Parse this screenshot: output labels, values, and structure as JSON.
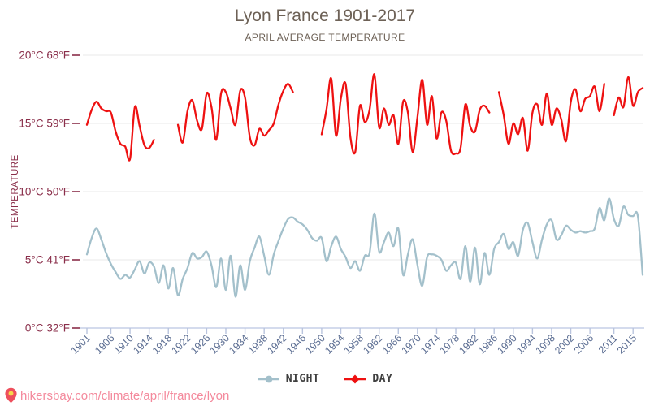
{
  "title": "Lyon France 1901-2017",
  "subtitle": "APRIL AVERAGE TEMPERATURE",
  "footer": {
    "url": "hikersbay.com/climate/april/france/lyon"
  },
  "legend": {
    "night_label": "NIGHT",
    "day_label": "DAY"
  },
  "axis": {
    "y_label": "TEMPERATURE",
    "y_ticks": [
      {
        "value": 20,
        "label": "20°C 68°F"
      },
      {
        "value": 15,
        "label": "15°C 59°F"
      },
      {
        "value": 10,
        "label": "10°C 50°F"
      },
      {
        "value": 5,
        "label": "5°C 41°F"
      },
      {
        "value": 0,
        "label": "0°C 32°F"
      }
    ],
    "x_tick_years": [
      1901,
      1906,
      1910,
      1914,
      1918,
      1922,
      1926,
      1930,
      1934,
      1938,
      1942,
      1946,
      1950,
      1954,
      1958,
      1962,
      1966,
      1970,
      1974,
      1978,
      1982,
      1986,
      1990,
      1994,
      1998,
      2002,
      2006,
      2011,
      2015
    ]
  },
  "colors": {
    "day": "#ee1111",
    "night": "#a3c0cb",
    "grid": "#e8e8e8",
    "axis_line": "#c6cfe7",
    "axis_tick": "#b9c4de",
    "y_label_text": "#8a2e4a",
    "x_label_text": "#5b6d92",
    "title_text": "#6d6156",
    "legend_text": "#3f3f3f",
    "footer_text": "#f4899c",
    "pin_outer": "#ee4f5c",
    "pin_inner": "#f7d74c"
  },
  "chart_data": {
    "type": "line",
    "title": "Lyon France 1901-2017",
    "subtitle": "APRIL AVERAGE TEMPERATURE",
    "ylabel": "TEMPERATURE",
    "ylim_c": [
      0,
      20
    ],
    "grid": "horizontal",
    "legend_position": "bottom",
    "x": [
      1901,
      1902,
      1903,
      1904,
      1905,
      1906,
      1907,
      1908,
      1909,
      1910,
      1911,
      1912,
      1913,
      1914,
      1915,
      1916,
      1917,
      1918,
      1919,
      1920,
      1921,
      1922,
      1923,
      1924,
      1925,
      1926,
      1927,
      1928,
      1929,
      1930,
      1931,
      1932,
      1933,
      1934,
      1935,
      1936,
      1937,
      1938,
      1939,
      1940,
      1941,
      1942,
      1943,
      1944,
      1945,
      1946,
      1947,
      1948,
      1949,
      1950,
      1951,
      1952,
      1953,
      1954,
      1955,
      1956,
      1957,
      1958,
      1959,
      1960,
      1961,
      1962,
      1963,
      1964,
      1965,
      1966,
      1967,
      1968,
      1969,
      1970,
      1971,
      1972,
      1973,
      1974,
      1975,
      1976,
      1977,
      1978,
      1979,
      1980,
      1981,
      1982,
      1983,
      1984,
      1985,
      1986,
      1987,
      1988,
      1989,
      1990,
      1991,
      1992,
      1993,
      1994,
      1995,
      1996,
      1997,
      1998,
      1999,
      2000,
      2001,
      2002,
      2003,
      2004,
      2005,
      2006,
      2007,
      2008,
      2009,
      2010,
      2011,
      2012,
      2013,
      2014,
      2015,
      2016,
      2017
    ],
    "series": [
      {
        "name": "DAY",
        "unit": "°C",
        "values": [
          14.9,
          16.0,
          16.6,
          16.1,
          15.9,
          15.8,
          14.4,
          13.5,
          13.3,
          12.4,
          16.2,
          14.8,
          13.4,
          13.2,
          13.8,
          null,
          null,
          null,
          null,
          14.9,
          13.6,
          15.9,
          16.7,
          15.2,
          14.6,
          17.2,
          16.2,
          13.8,
          17.2,
          17.3,
          16.1,
          14.9,
          17.4,
          16.9,
          14.0,
          13.4,
          14.6,
          14.1,
          14.5,
          15.0,
          16.4,
          17.4,
          17.9,
          17.3,
          null,
          null,
          null,
          null,
          null,
          14.2,
          16.0,
          18.3,
          14.1,
          16.8,
          17.9,
          14.0,
          12.9,
          16.3,
          15.1,
          16.0,
          18.6,
          14.7,
          16.1,
          14.9,
          15.6,
          13.5,
          16.6,
          15.8,
          12.9,
          15.5,
          18.2,
          14.9,
          17.0,
          13.9,
          15.8,
          15.2,
          13.0,
          12.8,
          13.2,
          16.4,
          14.8,
          14.4,
          16.0,
          16.3,
          15.8,
          null,
          17.3,
          15.6,
          13.5,
          15.0,
          14.2,
          15.4,
          13.0,
          15.8,
          16.4,
          14.9,
          17.2,
          14.9,
          16.1,
          15.3,
          13.7,
          16.6,
          17.5,
          15.9,
          16.8,
          17.0,
          17.7,
          15.9,
          17.9,
          null,
          15.6,
          16.9,
          16.2,
          18.4,
          16.3,
          17.3,
          17.6
        ]
      },
      {
        "name": "NIGHT",
        "unit": "°C",
        "values": [
          5.4,
          6.6,
          7.3,
          6.5,
          5.5,
          4.7,
          4.1,
          3.6,
          3.9,
          3.7,
          4.3,
          4.9,
          4.0,
          4.8,
          4.5,
          3.3,
          4.6,
          2.9,
          4.4,
          2.4,
          3.6,
          4.4,
          5.5,
          5.1,
          5.2,
          5.6,
          4.6,
          3.0,
          5.1,
          2.8,
          5.3,
          2.3,
          4.6,
          2.8,
          4.9,
          5.9,
          6.7,
          5.3,
          3.9,
          5.4,
          6.4,
          7.3,
          8.0,
          8.1,
          7.8,
          7.6,
          7.2,
          6.6,
          6.4,
          6.6,
          4.9,
          6.0,
          6.7,
          5.8,
          5.2,
          4.4,
          4.9,
          4.2,
          5.3,
          5.5,
          8.4,
          5.6,
          6.3,
          7.0,
          6.0,
          7.3,
          3.9,
          5.4,
          6.5,
          4.6,
          3.1,
          5.2,
          5.4,
          5.3,
          5.0,
          4.2,
          4.6,
          4.8,
          3.6,
          6.0,
          3.4,
          5.9,
          3.2,
          5.5,
          3.9,
          5.8,
          6.3,
          6.9,
          5.8,
          6.3,
          5.3,
          7.2,
          7.7,
          6.3,
          5.1,
          6.5,
          7.6,
          7.9,
          6.5,
          6.8,
          7.5,
          7.2,
          7.0,
          7.1,
          7.0,
          7.1,
          7.3,
          8.8,
          7.9,
          9.5,
          8.0,
          7.5,
          8.9,
          8.3,
          8.2,
          8.2,
          3.9
        ]
      }
    ]
  }
}
